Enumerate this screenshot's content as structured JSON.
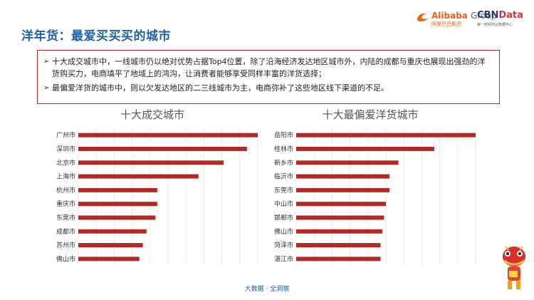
{
  "header": {
    "title": "洋年货：最爱买买买的城市",
    "logos": {
      "alibaba_name": "Alibaba",
      "alibaba_group": "Group",
      "alibaba_cn": "阿里巴巴集团",
      "cbn_name": "CBN",
      "cbn_data": "Data",
      "cbn_sub": "第一财经商业数据中心"
    }
  },
  "summary": {
    "bullets": [
      "十大成交城市中，一线城市仍以绝对优势占据Top4位置，除了沿海经济发达地区城市外，内陆的成都与重庆也展现出强劲的洋货购买力，电商填平了地域上的鸿沟，让消费者能够享受同样丰富的洋货选择；",
      "最偏爱洋货的城市中，则以欠发达地区的二三线城市为主，电商弥补了这些地区线下渠道的不足。"
    ]
  },
  "chart_data": [
    {
      "type": "bar",
      "orientation": "horizontal",
      "title": "十大成交城市",
      "categories": [
        "广州市",
        "深圳市",
        "北京市",
        "上海市",
        "杭州市",
        "重庆市",
        "东莞市",
        "成都市",
        "苏州市",
        "佛山市"
      ],
      "values": [
        100,
        94,
        81,
        67,
        44,
        44,
        43,
        38,
        36,
        34
      ],
      "xlim": [
        0,
        100
      ],
      "grid": "vertical",
      "color": "#b22a23"
    },
    {
      "type": "bar",
      "orientation": "horizontal",
      "title": "十大最偏爱洋货城市",
      "categories": [
        "岳阳市",
        "桂林市",
        "新乡市",
        "临沂市",
        "东莞市",
        "中山市",
        "邯郸市",
        "佛山市",
        "菏泽市",
        "湛江市"
      ],
      "values": [
        100,
        77,
        57,
        52,
        52,
        50,
        49,
        48,
        47,
        47
      ],
      "xlim": [
        0,
        100
      ],
      "grid": "vertical",
      "color": "#b22a23"
    }
  ],
  "footer": {
    "text": "大数据 · 全洞察"
  },
  "colors": {
    "title": "#1f5ea8",
    "bar": "#b22a23",
    "border": "#b22a23",
    "grid": "#e2e2e2"
  }
}
